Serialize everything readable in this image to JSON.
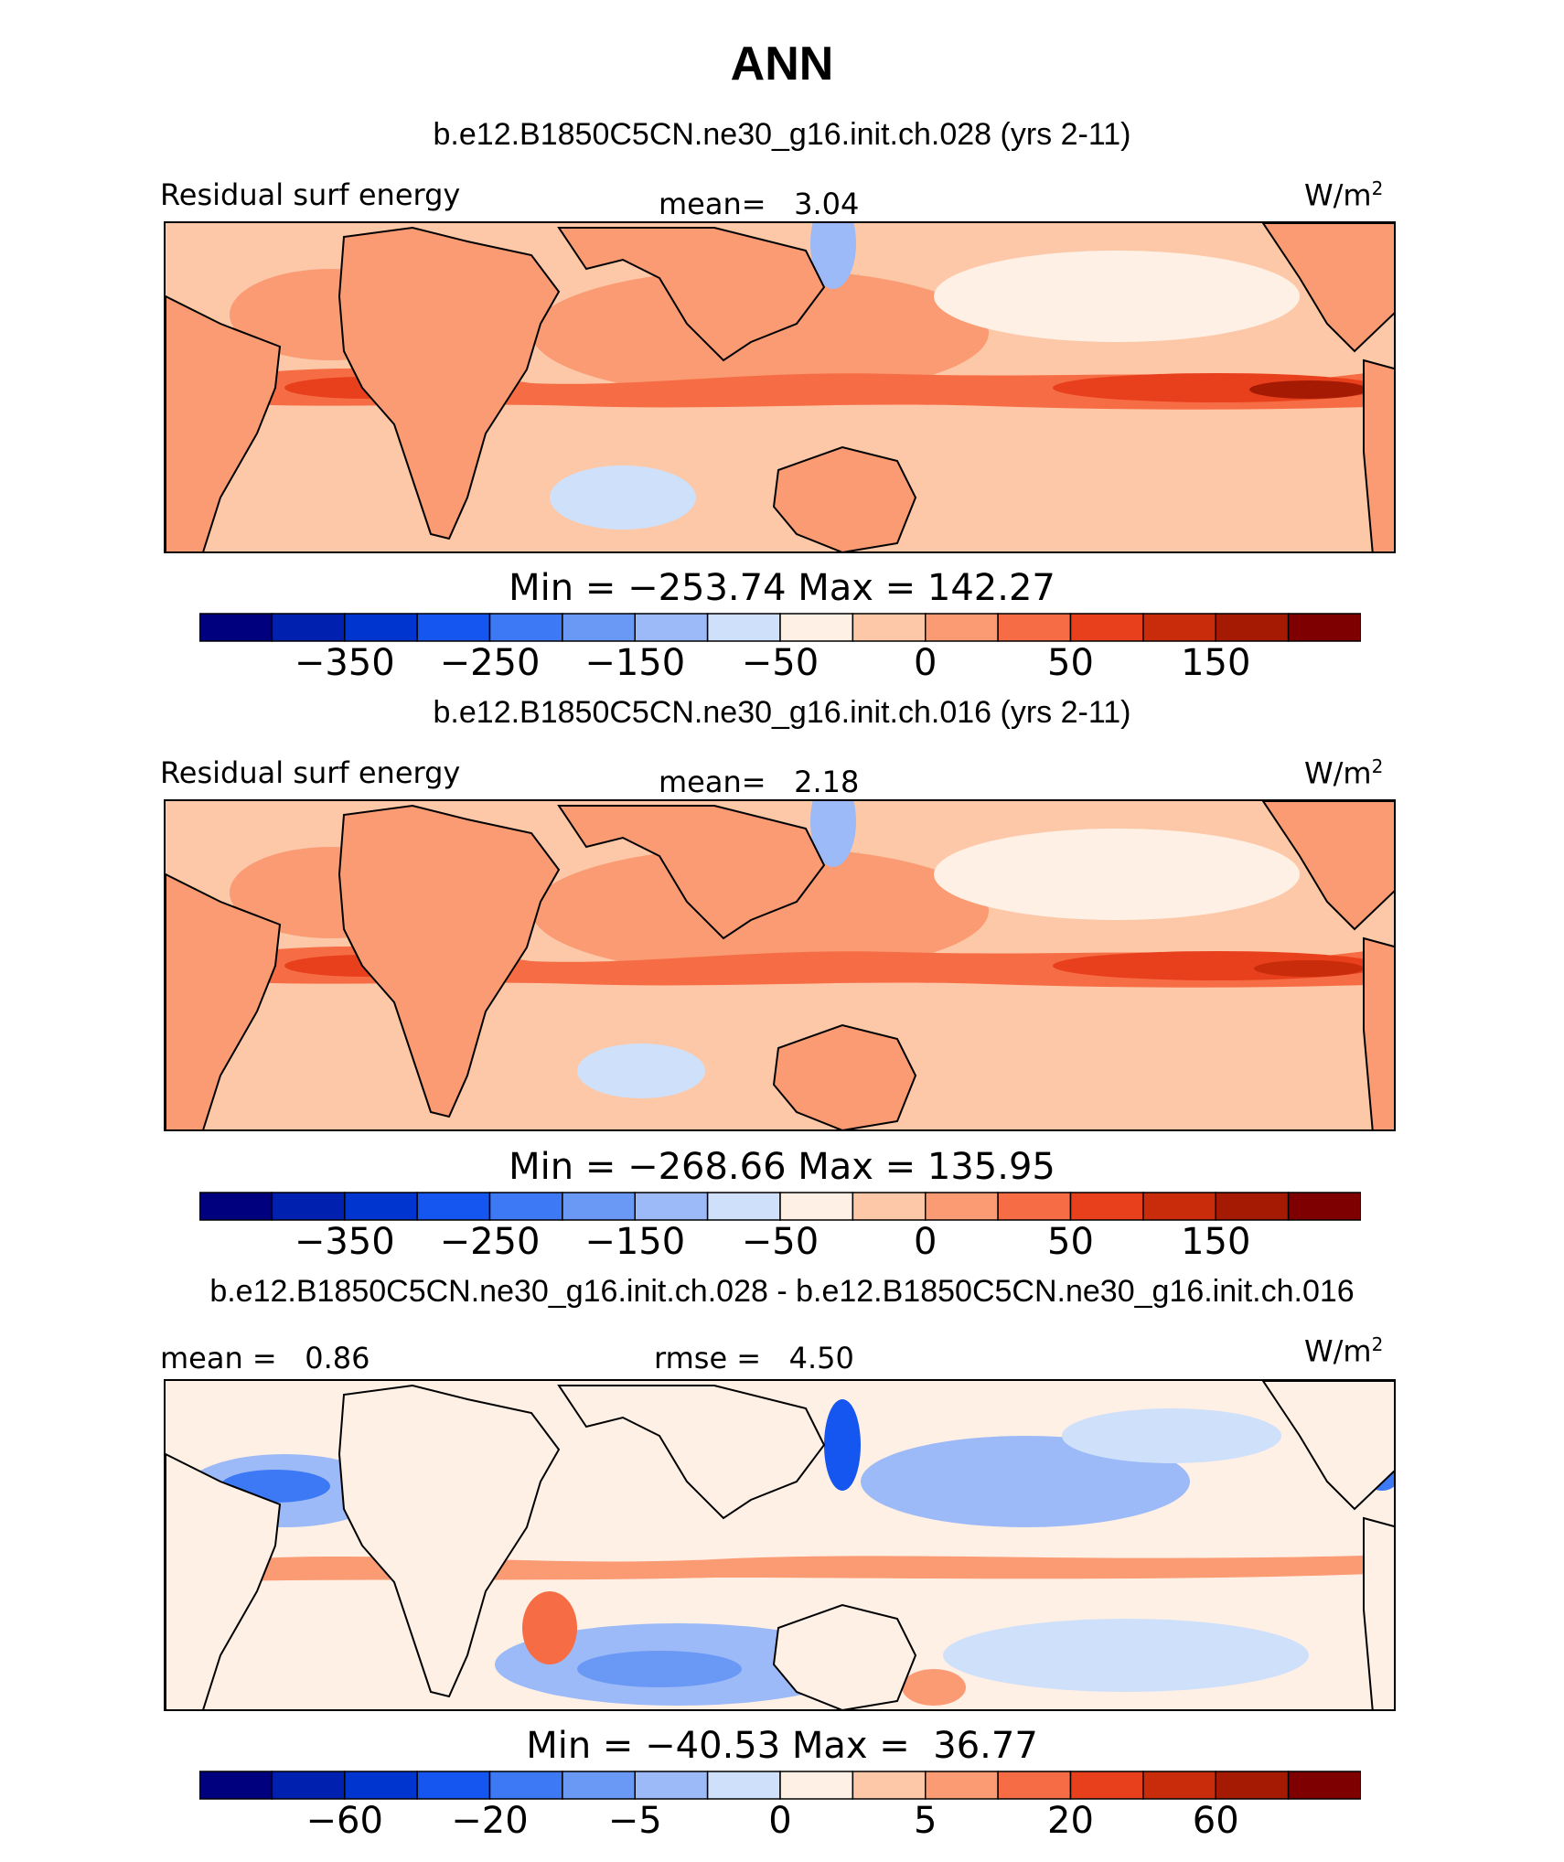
{
  "title": "ANN",
  "units_note": "W/m²",
  "palette": {
    "colors": [
      "#00007f",
      "#0020b0",
      "#0035d0",
      "#1555f0",
      "#3d78f5",
      "#6a98f5",
      "#9cbaf7",
      "#cfe0fa",
      "#fff0e6",
      "#fdc8a8",
      "#fa9b74",
      "#f66d45",
      "#e8401c",
      "#c82c0a",
      "#a51a03",
      "#7f0000"
    ]
  },
  "panels": [
    {
      "case_title": "b.e12.B1850C5CN.ne30_g16.init.ch.028 (yrs 2-11)",
      "left_label": "Residual surf energy",
      "center_label": "mean=   3.04",
      "units": "W/m",
      "units_exp": "2",
      "minmax": "Min = −253.74 Max = 142.27",
      "ticks": [
        "−350",
        "−250",
        "−150",
        "−50",
        "0",
        "50",
        "150"
      ],
      "tick_boundaries": [
        2,
        4,
        6,
        8,
        10,
        12,
        14
      ],
      "stats": {
        "mean": 3.04,
        "min": -253.74,
        "max": 142.27
      }
    },
    {
      "case_title": "b.e12.B1850C5CN.ne30_g16.init.ch.016 (yrs 2-11)",
      "left_label": "Residual surf energy",
      "center_label": "mean=   2.18",
      "units": "W/m",
      "units_exp": "2",
      "minmax": "Min = −268.66 Max = 135.95",
      "ticks": [
        "−350",
        "−250",
        "−150",
        "−50",
        "0",
        "50",
        "150"
      ],
      "tick_boundaries": [
        2,
        4,
        6,
        8,
        10,
        12,
        14
      ],
      "stats": {
        "mean": 2.18,
        "min": -268.66,
        "max": 135.95
      }
    },
    {
      "case_title": "b.e12.B1850C5CN.ne30_g16.init.ch.028 - b.e12.B1850C5CN.ne30_g16.init.ch.016",
      "left_label": "mean =   0.86",
      "center_label": "rmse =   4.50",
      "units": "W/m",
      "units_exp": "2",
      "minmax": "Min = −40.53 Max =  36.77",
      "ticks": [
        "−60",
        "−20",
        "−5",
        "0",
        "5",
        "20",
        "60"
      ],
      "tick_boundaries": [
        2,
        4,
        6,
        8,
        10,
        12,
        14
      ],
      "stats": {
        "mean": 0.86,
        "rmse": 4.5,
        "min": -40.53,
        "max": 36.77
      }
    }
  ]
}
